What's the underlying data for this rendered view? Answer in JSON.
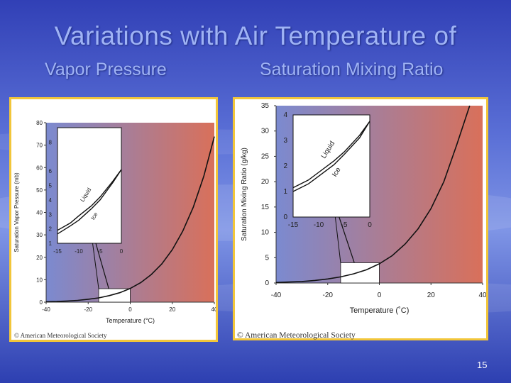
{
  "slide": {
    "title": "Variations with Air Temperature of",
    "subtitle_left": "Vapor Pressure",
    "subtitle_right": "Saturation Mixing Ratio",
    "page_number": "15",
    "frame_color": "#f2c63a"
  },
  "chart_data": [
    {
      "type": "line",
      "title": "",
      "xlabel": "Temperature (°C)",
      "ylabel": "Saturation Vapor Pressure (mb)",
      "xlim": [
        -40,
        40
      ],
      "ylim": [
        0,
        80
      ],
      "x_ticks": [
        "-40",
        "-20",
        "0",
        "20",
        "40"
      ],
      "y_ticks": [
        "0",
        "10",
        "20",
        "30",
        "40",
        "50",
        "60",
        "70",
        "80"
      ],
      "grid": false,
      "background_gradient": [
        "#7b8ad0",
        "#d9705a"
      ],
      "series": [
        {
          "values": [
            [
              -40,
              0.2
            ],
            [
              -35,
              0.3
            ],
            [
              -30,
              0.5
            ],
            [
              -25,
              0.8
            ],
            [
              -20,
              1.3
            ],
            [
              -15,
              1.9
            ],
            [
              -10,
              2.9
            ],
            [
              -5,
              4.2
            ],
            [
              0,
              6.1
            ],
            [
              5,
              8.7
            ],
            [
              10,
              12.3
            ],
            [
              15,
              17.0
            ],
            [
              20,
              23.4
            ],
            [
              25,
              31.7
            ],
            [
              30,
              42.4
            ],
            [
              35,
              56.2
            ],
            [
              40,
              73.8
            ]
          ]
        }
      ],
      "inset": {
        "xlim": [
          -15,
          0
        ],
        "ylim": [
          1,
          9
        ],
        "x_ticks": [
          "-15",
          "-10",
          "-5",
          "0"
        ],
        "y_ticks": [
          "1",
          "2",
          "3",
          "4",
          "5",
          "6",
          "8"
        ],
        "series": [
          {
            "name": "Liquid",
            "values": [
              [
                -15,
                1.9
              ],
              [
                -12,
                2.4
              ],
              [
                -10,
                2.9
              ],
              [
                -7,
                3.6
              ],
              [
                -5,
                4.2
              ],
              [
                -2,
                5.3
              ],
              [
                0,
                6.1
              ]
            ]
          },
          {
            "name": "Ice",
            "values": [
              [
                -15,
                1.65
              ],
              [
                -12,
                2.2
              ],
              [
                -10,
                2.6
              ],
              [
                -7,
                3.4
              ],
              [
                -5,
                4.0
              ],
              [
                -2,
                5.2
              ],
              [
                0,
                6.1
              ]
            ]
          }
        ]
      },
      "copyright": "© American Meteorological Society"
    },
    {
      "type": "line",
      "title": "",
      "xlabel": "Temperature (˚C)",
      "ylabel": "Saturation Mixing Ratio (g/kg)",
      "xlim": [
        -40,
        40
      ],
      "ylim": [
        0,
        35
      ],
      "x_ticks": [
        "-40",
        "-20",
        "0",
        "20",
        "40"
      ],
      "y_ticks": [
        "0",
        "5",
        "10",
        "15",
        "20",
        "25",
        "30",
        "35"
      ],
      "grid": false,
      "background_gradient": [
        "#7b8ad0",
        "#d9705a"
      ],
      "series": [
        {
          "values": [
            [
              -40,
              0.1
            ],
            [
              -35,
              0.2
            ],
            [
              -30,
              0.3
            ],
            [
              -25,
              0.5
            ],
            [
              -20,
              0.8
            ],
            [
              -15,
              1.2
            ],
            [
              -10,
              1.8
            ],
            [
              -5,
              2.6
            ],
            [
              0,
              3.8
            ],
            [
              5,
              5.4
            ],
            [
              10,
              7.7
            ],
            [
              15,
              10.7
            ],
            [
              20,
              14.7
            ],
            [
              25,
              20.0
            ],
            [
              30,
              27.3
            ],
            [
              35,
              35.0
            ]
          ]
        }
      ],
      "inset": {
        "xlim": [
          -15,
          0
        ],
        "ylim": [
          0,
          4
        ],
        "x_ticks": [
          "-15",
          "-10",
          "-5",
          "0"
        ],
        "y_ticks": [
          "0",
          "1",
          "2",
          "3",
          "4"
        ],
        "series": [
          {
            "name": "Liquid",
            "values": [
              [
                -15,
                1.15
              ],
              [
                -12,
                1.45
              ],
              [
                -10,
                1.75
              ],
              [
                -7,
                2.2
              ],
              [
                -5,
                2.55
              ],
              [
                -2,
                3.2
              ],
              [
                0,
                3.75
              ]
            ]
          },
          {
            "name": "Ice",
            "values": [
              [
                -15,
                1.0
              ],
              [
                -12,
                1.3
              ],
              [
                -10,
                1.6
              ],
              [
                -7,
                2.05
              ],
              [
                -5,
                2.45
              ],
              [
                -2,
                3.1
              ],
              [
                0,
                3.75
              ]
            ]
          }
        ]
      },
      "copyright": "© American Meteorological Society"
    }
  ]
}
